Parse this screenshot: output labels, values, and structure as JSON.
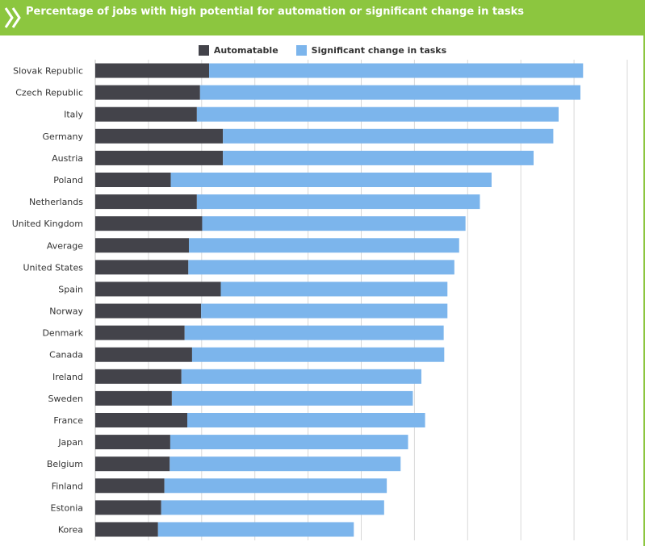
{
  "header": {
    "title": "Percentage of jobs with high potential for automation or significant change in tasks",
    "icon": "double-chevron-right-icon"
  },
  "colors": {
    "header_bg": "#8cc63f",
    "automatable": "#43434a",
    "significant": "#7cb5ec",
    "grid": "#d8d8d8"
  },
  "legend": {
    "automatable": "Automatable",
    "significant": "Significant change in tasks"
  },
  "chart_data": {
    "type": "bar",
    "orientation": "horizontal",
    "stacked": true,
    "categories": [
      "Slovak Republic",
      "Czech Republic",
      "Italy",
      "Germany",
      "Austria",
      "Poland",
      "Netherlands",
      "United Kingdom",
      "Average",
      "United States",
      "Spain",
      "Norway",
      "Denmark",
      "Canada",
      "Ireland",
      "Sweden",
      "France",
      "Japan",
      "Belgium",
      "Finland",
      "Estonia",
      "Korea"
    ],
    "series": [
      {
        "name": "Automatable",
        "values": [
          21.4,
          19.7,
          19.1,
          24.0,
          24.0,
          14.2,
          19.1,
          20.1,
          17.6,
          17.5,
          23.6,
          19.9,
          16.8,
          18.2,
          16.2,
          14.4,
          17.3,
          14.1,
          14.0,
          13.0,
          12.4,
          11.8
        ]
      },
      {
        "name": "Significant change in tasks",
        "values": [
          70.3,
          71.5,
          68.0,
          62.1,
          58.4,
          60.3,
          53.2,
          49.5,
          50.8,
          50.0,
          42.6,
          46.3,
          48.7,
          47.4,
          45.1,
          45.3,
          44.7,
          44.7,
          43.4,
          41.8,
          41.9,
          36.8
        ]
      }
    ],
    "xlim": [
      0,
      100
    ],
    "grid": true,
    "legend_position": "top-center"
  }
}
